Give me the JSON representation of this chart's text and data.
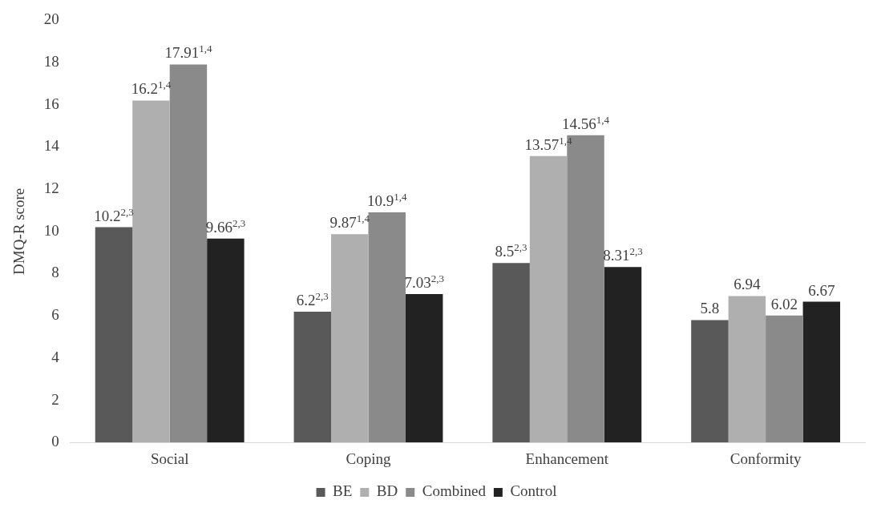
{
  "chart_data": {
    "type": "bar",
    "ylabel": "DMQ-R score",
    "categories": [
      "Social",
      "Coping",
      "Enhancement",
      "Conformity"
    ],
    "series": [
      {
        "name": "BE",
        "color": "#595959",
        "values": [
          10.2,
          6.2,
          8.5,
          5.8
        ],
        "value_labels": [
          "10.2$^{2,3}$",
          "6.2$^{2,3}$",
          "8.5$^{2,3}$",
          "5.8"
        ]
      },
      {
        "name": "BD",
        "color": "#afafaf",
        "values": [
          16.2,
          9.87,
          13.57,
          6.94
        ],
        "value_labels": [
          "16.2$^{1,4}$",
          "9.87$^{1,4}$",
          "13.57$^{1,4}$",
          "6.94"
        ]
      },
      {
        "name": "Combined",
        "color": "#8a8a8a",
        "values": [
          17.91,
          10.9,
          14.56,
          6.02
        ],
        "value_labels": [
          "17.91$^{1,4}$",
          "10.9$^{1,4}$",
          "14.56$^{1,4}$",
          "6.02"
        ]
      },
      {
        "name": "Control",
        "color": "#222222",
        "values": [
          9.66,
          7.03,
          8.31,
          6.67
        ],
        "value_labels": [
          "9.66$^{2,3}$",
          "7.03$^{2,3}$",
          "8.31$^{2,3}$",
          "6.67"
        ]
      }
    ],
    "ylim": [
      0,
      20
    ],
    "yticks": [
      0,
      2,
      4,
      6,
      8,
      10,
      12,
      14,
      16,
      18,
      20
    ],
    "grid": false,
    "legend": "bottom"
  }
}
